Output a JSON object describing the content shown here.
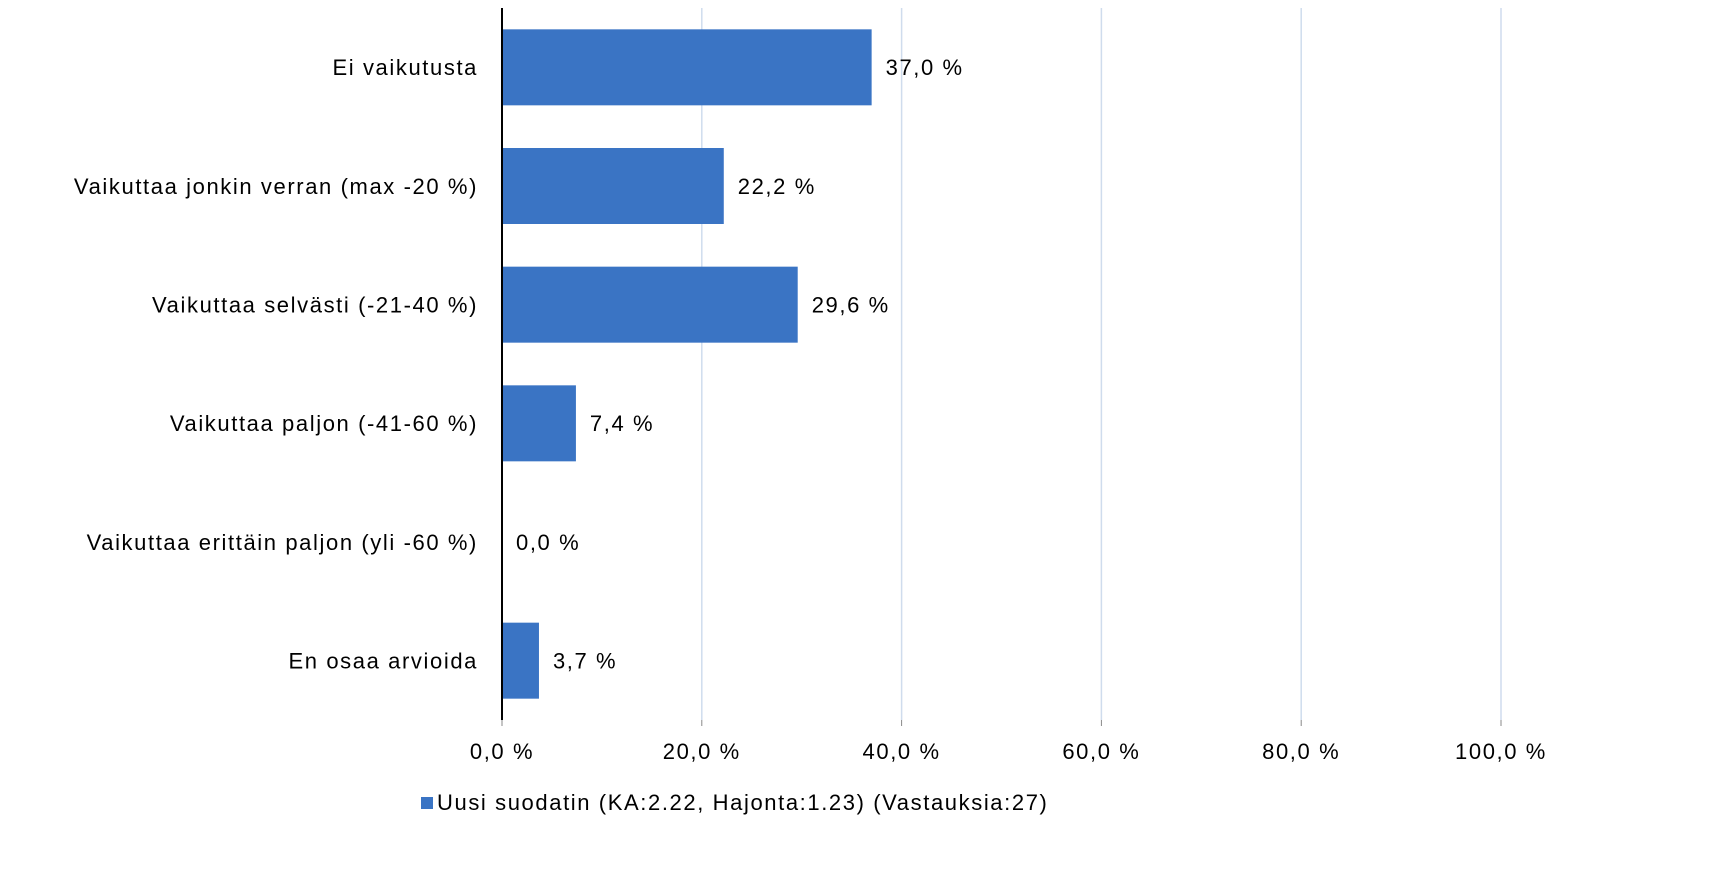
{
  "chart_data": {
    "type": "barh",
    "categories": [
      "Ei vaikutusta",
      "Vaikuttaa jonkin verran (max -20 %)",
      "Vaikuttaa selvästi (-21-40 %)",
      "Vaikuttaa paljon (-41-60 %)",
      "Vaikuttaa erittäin paljon (yli -60 %)",
      "En osaa arvioida"
    ],
    "series": [
      {
        "name": "Uusi suodatin (KA:2.22, Hajonta:1.23) (Vastauksia:27)",
        "color": "#3a74c4",
        "values": [
          37.0,
          22.2,
          29.6,
          7.4,
          0.0,
          3.7
        ],
        "value_labels": [
          "37,0 %",
          "22,2 %",
          "29,6 %",
          "7,4 %",
          "0,0 %",
          "3,7 %"
        ]
      }
    ],
    "xlim": [
      0,
      100
    ],
    "xticks": [
      {
        "value": 0,
        "label": "0,0 %"
      },
      {
        "value": 20,
        "label": "20,0 %"
      },
      {
        "value": 40,
        "label": "40,0 %"
      },
      {
        "value": 60,
        "label": "60,0 %"
      },
      {
        "value": 80,
        "label": "80,0 %"
      },
      {
        "value": 100,
        "label": "100,0 %"
      }
    ],
    "grid": true,
    "legend": "bottom"
  }
}
